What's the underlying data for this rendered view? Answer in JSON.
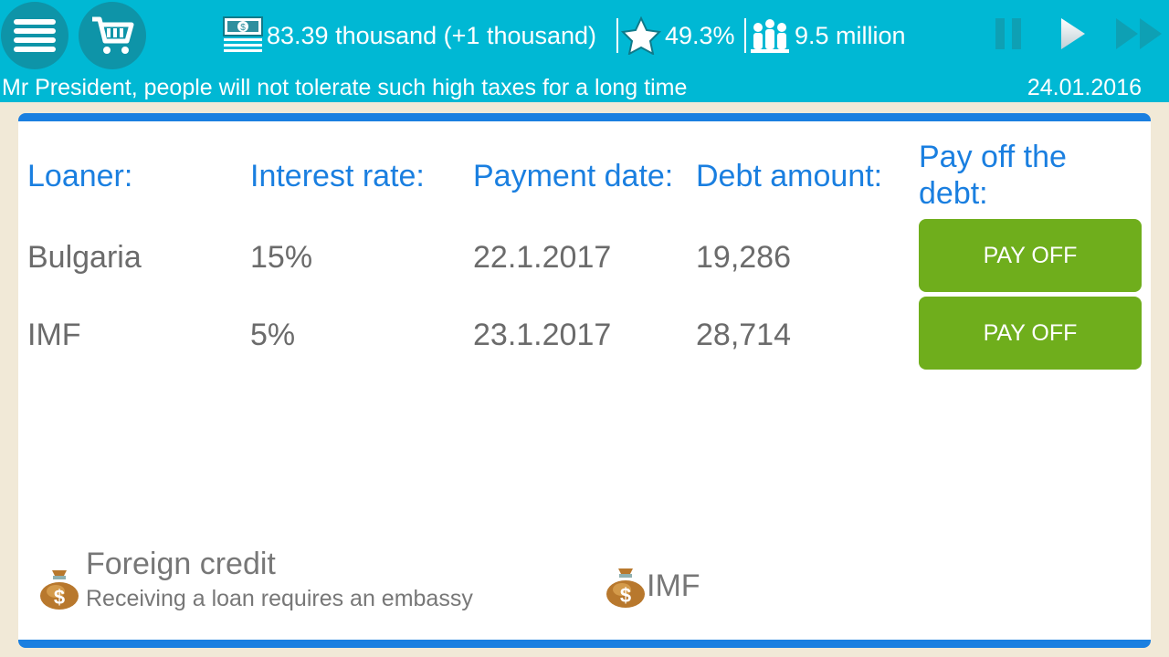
{
  "header": {
    "money": "83.39 thousand (+1 thousand)",
    "approval": "49.3%",
    "population": "9.5 million",
    "message": "Mr President, people will not tolerate such high taxes for a long time",
    "date": "24.01.2016"
  },
  "table": {
    "headers": [
      "Loaner:",
      "Interest rate:",
      "Payment date:",
      "Debt amount:",
      "Pay off the debt:"
    ],
    "rows": [
      {
        "loaner": "Bulgaria",
        "rate": "15%",
        "date": "22.1.2017",
        "amount": "19,286",
        "button": "PAY OFF"
      },
      {
        "loaner": "IMF",
        "rate": "5%",
        "date": "23.1.2017",
        "amount": "28,714",
        "button": "PAY OFF"
      }
    ]
  },
  "options": [
    {
      "title": "Foreign credit",
      "subtitle": "Receiving a loan requires an embassy"
    },
    {
      "title": "IMF"
    }
  ],
  "colors": {
    "header": "#00b8d4",
    "accent": "#1a7fe0",
    "button": "#6fae1c"
  }
}
